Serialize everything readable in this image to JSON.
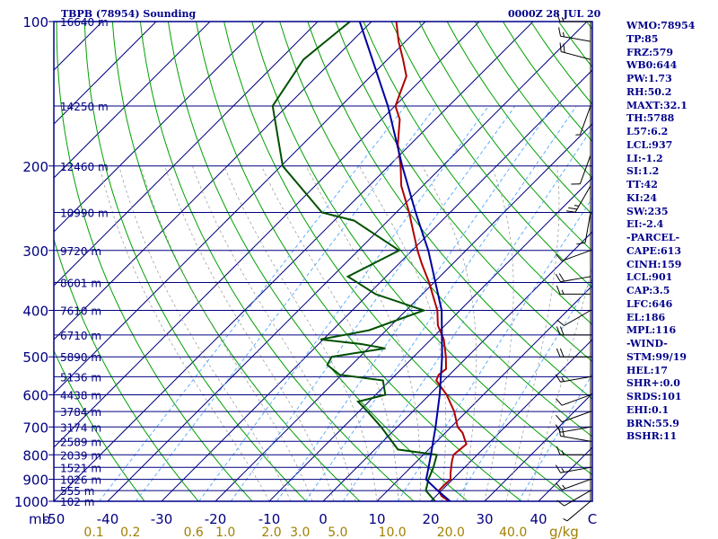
{
  "header": {
    "title": "TBPB (78954) Sounding",
    "datetime": "0000Z 28 JUL 20"
  },
  "stats": [
    "WMO:78954",
    "TP:85",
    "FRZ:579",
    "WB0:644",
    "PW:1.73",
    "RH:50.2",
    "MAXT:32.1",
    "TH:5788",
    "L57:6.2",
    "LCL:937",
    "LI:-1.2",
    "SI:1.2",
    "TT:42",
    "KI:24",
    "SW:235",
    "EI:-2.4",
    "-PARCEL-",
    "CAPE:613",
    "CINH:159",
    "LCL:901",
    "CAP:3.5",
    "LFC:646",
    "EL:186",
    "MPL:116",
    "-WIND-",
    "STM:99/19",
    "HEL:17",
    "SHR+:0.0",
    "SRDS:101",
    "EHI:0.1",
    "BRN:55.9",
    "BSHR:11"
  ],
  "chart_data": {
    "type": "skew-t",
    "pressure_axis": {
      "unit_label": "mb",
      "ticks": [
        "100",
        "200",
        "300",
        "400",
        "500",
        "600",
        "700",
        "800",
        "900",
        "1000"
      ],
      "range": [
        1000,
        100
      ],
      "scale": "log"
    },
    "temperature_axis": {
      "ticks": [
        "-50",
        "-40",
        "-30",
        "-20",
        "-10",
        "0",
        "10",
        "20",
        "30",
        "40",
        "C"
      ],
      "range": [
        -50,
        50
      ]
    },
    "mixing_ratio_axis": {
      "unit_label": "g/kg",
      "ticks": [
        "0.1",
        "0.2",
        "0.6",
        "1.0",
        "2.0",
        "3.0",
        "5.0",
        "10.0",
        "20.0",
        "40.0"
      ]
    },
    "height_labels": [
      {
        "p": 100,
        "label": "16640 m"
      },
      {
        "p": 150,
        "label": "14250 m"
      },
      {
        "p": 200,
        "label": "12460 m"
      },
      {
        "p": 250,
        "label": "10990 m"
      },
      {
        "p": 300,
        "label": "9720 m"
      },
      {
        "p": 350,
        "label": "8601 m"
      },
      {
        "p": 400,
        "label": "7610 m"
      },
      {
        "p": 450,
        "label": "6710 m"
      },
      {
        "p": 500,
        "label": "5890 m"
      },
      {
        "p": 550,
        "label": "5136 m"
      },
      {
        "p": 600,
        "label": "4438 m"
      },
      {
        "p": 650,
        "label": "3784 m"
      },
      {
        "p": 700,
        "label": "3174 m"
      },
      {
        "p": 750,
        "label": "2589 m"
      },
      {
        "p": 800,
        "label": "2039 m"
      },
      {
        "p": 850,
        "label": "1521 m"
      },
      {
        "p": 900,
        "label": "1026 m"
      },
      {
        "p": 950,
        "label": "555 m"
      },
      {
        "p": 1000,
        "label": "102 m"
      }
    ],
    "series": [
      {
        "role": "temperature",
        "color": "#b00000",
        "points": [
          {
            "p": 1000,
            "t": 23.4
          },
          {
            "p": 975,
            "t": 21.0
          },
          {
            "p": 950,
            "t": 19.5
          },
          {
            "p": 925,
            "t": 19.5
          },
          {
            "p": 900,
            "t": 19.6
          },
          {
            "p": 875,
            "t": 18.5
          },
          {
            "p": 850,
            "t": 17.5
          },
          {
            "p": 825,
            "t": 16.5
          },
          {
            "p": 800,
            "t": 15.6
          },
          {
            "p": 760,
            "t": 16.0
          },
          {
            "p": 720,
            "t": 13.2
          },
          {
            "p": 700,
            "t": 11.2
          },
          {
            "p": 650,
            "t": 7.7
          },
          {
            "p": 600,
            "t": 3.2
          },
          {
            "p": 560,
            "t": -1.4
          },
          {
            "p": 545,
            "t": -2.0
          },
          {
            "p": 530,
            "t": -1.7
          },
          {
            "p": 500,
            "t": -4.0
          },
          {
            "p": 460,
            "t": -7.6
          },
          {
            "p": 430,
            "t": -11.3
          },
          {
            "p": 400,
            "t": -14.2
          },
          {
            "p": 350,
            "t": -20.9
          },
          {
            "p": 320,
            "t": -25.7
          },
          {
            "p": 300,
            "t": -29.0
          },
          {
            "p": 270,
            "t": -34.0
          },
          {
            "p": 250,
            "t": -37.6
          },
          {
            "p": 220,
            "t": -44.0
          },
          {
            "p": 200,
            "t": -47.8
          },
          {
            "p": 180,
            "t": -52.4
          },
          {
            "p": 160,
            "t": -56.6
          },
          {
            "p": 150,
            "t": -59.9
          },
          {
            "p": 140,
            "t": -61.6
          },
          {
            "p": 130,
            "t": -63.4
          },
          {
            "p": 120,
            "t": -67.1
          },
          {
            "p": 110,
            "t": -71.3
          },
          {
            "p": 100,
            "t": -75.4
          }
        ]
      },
      {
        "role": "dewpoint",
        "color": "#005000",
        "points": [
          {
            "p": 1000,
            "t": 20.8
          },
          {
            "p": 950,
            "t": 17.1
          },
          {
            "p": 900,
            "t": 15.5
          },
          {
            "p": 850,
            "t": 14.2
          },
          {
            "p": 800,
            "t": 12.5
          },
          {
            "p": 780,
            "t": 4.3
          },
          {
            "p": 700,
            "t": -3.0
          },
          {
            "p": 650,
            "t": -8.4
          },
          {
            "p": 620,
            "t": -12.0
          },
          {
            "p": 600,
            "t": -8.2
          },
          {
            "p": 560,
            "t": -11.3
          },
          {
            "p": 545,
            "t": -20.4
          },
          {
            "p": 520,
            "t": -24.5
          },
          {
            "p": 500,
            "t": -25.2
          },
          {
            "p": 480,
            "t": -16.8
          },
          {
            "p": 470,
            "t": -22.2
          },
          {
            "p": 460,
            "t": -30.5
          },
          {
            "p": 440,
            "t": -23.2
          },
          {
            "p": 400,
            "t": -16.7
          },
          {
            "p": 370,
            "t": -28.7
          },
          {
            "p": 340,
            "t": -37.1
          },
          {
            "p": 300,
            "t": -32.4
          },
          {
            "p": 260,
            "t": -46.3
          },
          {
            "p": 250,
            "t": -53.8
          },
          {
            "p": 200,
            "t": -69.7
          },
          {
            "p": 150,
            "t": -82.7
          },
          {
            "p": 120,
            "t": -85.6
          },
          {
            "p": 100,
            "t": -84.0
          }
        ]
      },
      {
        "role": "parcel",
        "color": "#0000a0",
        "points": [
          {
            "p": 1000,
            "t": 23.6
          },
          {
            "p": 950,
            "t": 19.3
          },
          {
            "p": 901,
            "t": 15.1
          },
          {
            "p": 850,
            "t": 13.3
          },
          {
            "p": 800,
            "t": 11.4
          },
          {
            "p": 700,
            "t": 7.1
          },
          {
            "p": 600,
            "t": 1.9
          },
          {
            "p": 500,
            "t": -4.7
          },
          {
            "p": 400,
            "t": -13.4
          },
          {
            "p": 300,
            "t": -27.0
          },
          {
            "p": 250,
            "t": -36.4
          },
          {
            "p": 200,
            "t": -47.5
          },
          {
            "p": 150,
            "t": -61.3
          },
          {
            "p": 100,
            "t": -82.2
          }
        ]
      }
    ],
    "wind_barbs": [
      {
        "p": 100,
        "dir": 270,
        "spd": 15
      },
      {
        "p": 110,
        "dir": 280,
        "spd": 15
      },
      {
        "p": 120,
        "dir": 285,
        "spd": 20
      },
      {
        "p": 150,
        "dir": 200,
        "spd": 5
      },
      {
        "p": 190,
        "dir": 200,
        "spd": 10
      },
      {
        "p": 220,
        "dir": 210,
        "spd": 25
      },
      {
        "p": 250,
        "dir": 190,
        "spd": 10
      },
      {
        "p": 300,
        "dir": 250,
        "spd": 10
      },
      {
        "p": 340,
        "dir": 260,
        "spd": 20
      },
      {
        "p": 370,
        "dir": 270,
        "spd": 15
      },
      {
        "p": 400,
        "dir": 240,
        "spd": 10
      },
      {
        "p": 450,
        "dir": 270,
        "spd": 20
      },
      {
        "p": 500,
        "dir": 270,
        "spd": 20
      },
      {
        "p": 550,
        "dir": 260,
        "spd": 15
      },
      {
        "p": 600,
        "dir": 250,
        "spd": 10
      },
      {
        "p": 650,
        "dir": 250,
        "spd": 10
      },
      {
        "p": 700,
        "dir": 260,
        "spd": 10
      },
      {
        "p": 750,
        "dir": 280,
        "spd": 20
      },
      {
        "p": 800,
        "dir": 270,
        "spd": 15
      },
      {
        "p": 850,
        "dir": 260,
        "spd": 15
      },
      {
        "p": 900,
        "dir": 250,
        "spd": 15
      },
      {
        "p": 950,
        "dir": 240,
        "spd": 10
      },
      {
        "p": 1000,
        "dir": 230,
        "spd": 5
      }
    ]
  },
  "colors": {
    "border": "#00008b",
    "isobar": "#000080",
    "isotherm": "#000080",
    "dry_adiabat": "#00a000",
    "moist_adiabat": "#a0a0a0",
    "mixing_ratio": "#4fa7ff",
    "mixing_label": "#a08000",
    "axis_text": "#000080",
    "background": "#ffffff"
  }
}
